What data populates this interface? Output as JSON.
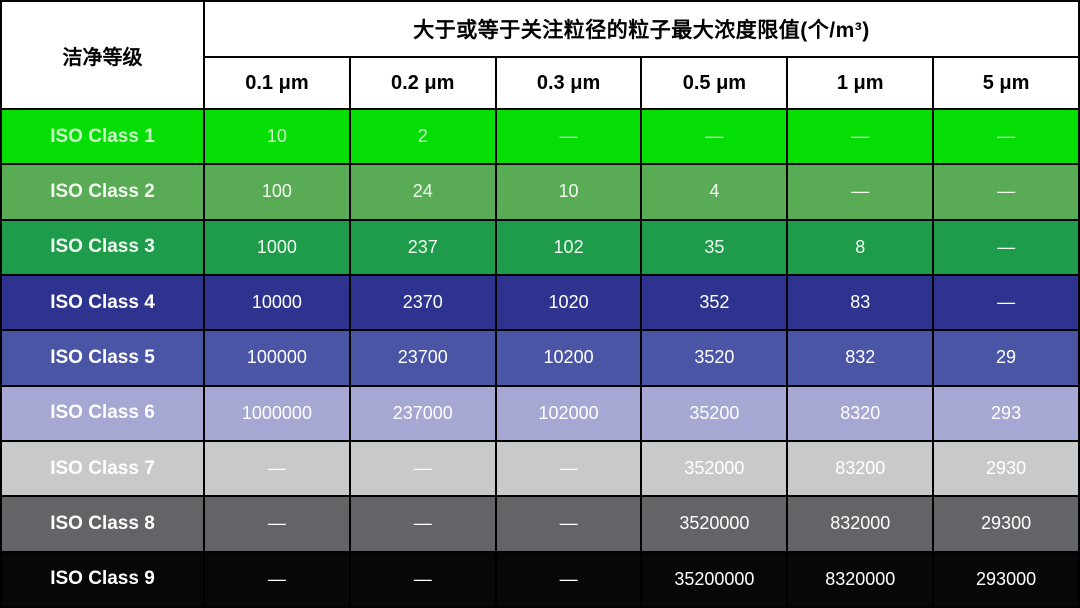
{
  "chart_data": {
    "type": "table",
    "title": "大于或等于关注粒径的粒子最大浓度限值(个/m³)",
    "corner_label": "洁净等级",
    "columns": [
      "0.1 μm",
      "0.2 μm",
      "0.3 μm",
      "0.5 μm",
      "1 μm",
      "5 μm"
    ],
    "dash": "—",
    "rows": [
      {
        "label": "ISO Class 1",
        "values": [
          "10",
          "2",
          "—",
          "—",
          "—",
          "—"
        ],
        "bg": "#05DE05",
        "fg": "#CDF3C8"
      },
      {
        "label": "ISO Class 2",
        "values": [
          "100",
          "24",
          "10",
          "4",
          "—",
          "—"
        ],
        "bg": "#5AAB55",
        "fg": "#F2FAF0"
      },
      {
        "label": "ISO Class 3",
        "values": [
          "1000",
          "237",
          "102",
          "35",
          "8",
          "—"
        ],
        "bg": "#1F9C4B",
        "fg": "#EFFAF1"
      },
      {
        "label": "ISO Class 4",
        "values": [
          "10000",
          "2370",
          "1020",
          "352",
          "83",
          "—"
        ],
        "bg": "#2E3390",
        "fg": "#FFFFFF"
      },
      {
        "label": "ISO Class 5",
        "values": [
          "100000",
          "23700",
          "10200",
          "3520",
          "832",
          "29"
        ],
        "bg": "#4A55A6",
        "fg": "#FFFFFF"
      },
      {
        "label": "ISO Class 6",
        "values": [
          "1000000",
          "237000",
          "102000",
          "35200",
          "8320",
          "293"
        ],
        "bg": "#A4A8D3",
        "fg": "#FFFFFF"
      },
      {
        "label": "ISO Class 7",
        "values": [
          "—",
          "—",
          "—",
          "352000",
          "83200",
          "2930"
        ],
        "bg": "#C7C9CB",
        "fg": "#FFFFFF"
      },
      {
        "label": "ISO Class 8",
        "values": [
          "—",
          "—",
          "—",
          "3520000",
          "832000",
          "29300"
        ],
        "bg": "#626468",
        "fg": "#FFFFFF"
      },
      {
        "label": "ISO Class 9",
        "values": [
          "—",
          "—",
          "—",
          "35200000",
          "8320000",
          "293000"
        ],
        "bg": "#070707",
        "fg": "#FFFFFF"
      }
    ],
    "layout": {
      "border_color": "#000000",
      "header_bg": "#FFFFFF",
      "header_fg": "#000000"
    }
  }
}
